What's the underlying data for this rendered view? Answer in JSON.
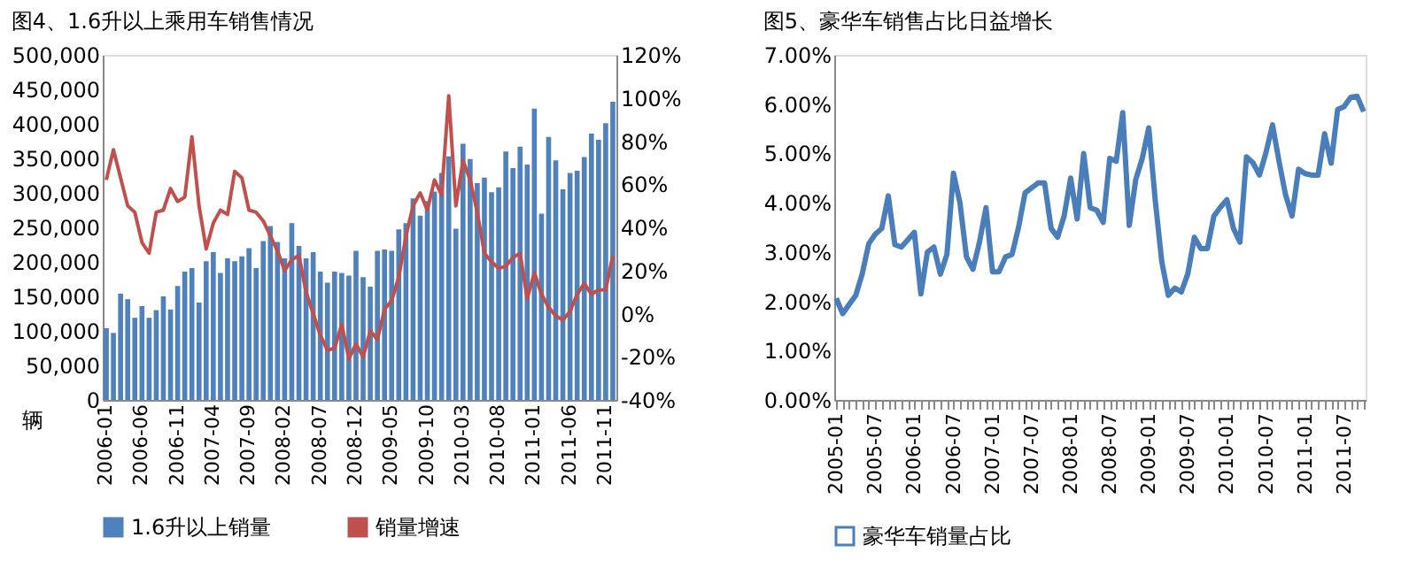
{
  "chart_data": [
    {
      "type": "bar",
      "title": "图4、1.6升以上乘用车销售情况",
      "ylabel": "辆",
      "categories": [
        "2006-01",
        null,
        null,
        null,
        null,
        "2006-06",
        null,
        null,
        null,
        null,
        "2006-11",
        null,
        null,
        null,
        null,
        "2007-04",
        null,
        null,
        null,
        null,
        "2007-09",
        null,
        null,
        null,
        null,
        "2008-02",
        null,
        null,
        null,
        null,
        "2008-07",
        null,
        null,
        null,
        null,
        "2008-12",
        null,
        null,
        null,
        null,
        "2009-05",
        null,
        null,
        null,
        null,
        "2009-10",
        null,
        null,
        null,
        null,
        "2010-03",
        null,
        null,
        null,
        null,
        "2010-08",
        null,
        null,
        null,
        null,
        "2011-01",
        null,
        null,
        null,
        null,
        "2011-06",
        null,
        null,
        null,
        null,
        "2011-11",
        null
      ],
      "series": [
        {
          "name": "1.6升以上销量",
          "type": "bar",
          "color": "#4f81bd",
          "values": [
            104000,
            97000,
            154000,
            146000,
            119000,
            136000,
            119000,
            130000,
            150000,
            131000,
            165000,
            186000,
            191000,
            141000,
            201000,
            214000,
            184000,
            205000,
            201000,
            208000,
            220000,
            191000,
            230000,
            252000,
            229000,
            205000,
            256000,
            223000,
            205000,
            214000,
            186000,
            170000,
            186000,
            184000,
            180000,
            216000,
            178000,
            164000,
            216000,
            218000,
            216000,
            247000,
            256000,
            292000,
            267000,
            288000,
            302000,
            329000,
            353000,
            248000,
            371000,
            349000,
            314000,
            322000,
            301000,
            308000,
            360000,
            336000,
            367000,
            341000,
            422000,
            270000,
            381000,
            347000,
            305000,
            329000,
            332000,
            352000,
            386000,
            377000,
            401000,
            432000
          ]
        },
        {
          "name": "销量增速",
          "type": "line",
          "axis": "y2",
          "color": "#c0504d",
          "values": [
            62,
            76,
            63,
            50,
            47,
            33,
            28,
            47,
            48,
            58,
            52,
            54,
            82,
            50,
            30,
            42,
            48,
            46,
            66,
            63,
            48,
            47,
            43,
            36,
            29,
            20,
            25,
            27,
            10,
            0,
            -10,
            -17,
            -16,
            -5,
            -21,
            -14,
            -20,
            -8,
            -12,
            2,
            6,
            17,
            36,
            50,
            56,
            48,
            62,
            55,
            101,
            50,
            71,
            62,
            47,
            28,
            24,
            21,
            22,
            26,
            28,
            7,
            19,
            9,
            3,
            -1,
            -3,
            1,
            9,
            14,
            9,
            11,
            11,
            27
          ]
        }
      ],
      "ylim": [
        0,
        500000
      ],
      "yticks": [
        {
          "value": 0,
          "label": "0"
        },
        {
          "value": 50000,
          "label": "50,000"
        },
        {
          "value": 100000,
          "label": "100,000"
        },
        {
          "value": 150000,
          "label": "150,000"
        },
        {
          "value": 200000,
          "label": "200,000"
        },
        {
          "value": 250000,
          "label": "250,000"
        },
        {
          "value": 300000,
          "label": "300,000"
        },
        {
          "value": 350000,
          "label": "350,000"
        },
        {
          "value": 400000,
          "label": "400,000"
        },
        {
          "value": 450000,
          "label": "450,000"
        },
        {
          "value": 500000,
          "label": "500,000"
        }
      ],
      "y2lim": [
        -40,
        120
      ],
      "y2ticks": [
        {
          "value": -40,
          "label": "-40%"
        },
        {
          "value": -20,
          "label": "-20%"
        },
        {
          "value": 0,
          "label": "0%"
        },
        {
          "value": 20,
          "label": "20%"
        },
        {
          "value": 40,
          "label": "40%"
        },
        {
          "value": 60,
          "label": "60%"
        },
        {
          "value": 80,
          "label": "80%"
        },
        {
          "value": 100,
          "label": "100%"
        },
        {
          "value": 120,
          "label": "120%"
        }
      ],
      "legend": "bottom"
    },
    {
      "type": "line",
      "title": "图5、豪华车销售占比日益增长",
      "categories": [
        "2005-01",
        null,
        null,
        null,
        null,
        null,
        "2005-07",
        null,
        null,
        null,
        null,
        null,
        "2006-01",
        null,
        null,
        null,
        null,
        null,
        "2006-07",
        null,
        null,
        null,
        null,
        null,
        "2007-01",
        null,
        null,
        null,
        null,
        null,
        "2007-07",
        null,
        null,
        null,
        null,
        null,
        "2008-01",
        null,
        null,
        null,
        null,
        null,
        "2008-07",
        null,
        null,
        null,
        null,
        null,
        "2009-01",
        null,
        null,
        null,
        null,
        null,
        "2009-07",
        null,
        null,
        null,
        null,
        null,
        "2010-01",
        null,
        null,
        null,
        null,
        null,
        "2010-07",
        null,
        null,
        null,
        null,
        null,
        "2011-01",
        null,
        null,
        null,
        null,
        null,
        "2011-07",
        null,
        null,
        null
      ],
      "series": [
        {
          "name": "豪华车销量占比",
          "color": "#4a7ebb",
          "values": [
            2.06,
            1.75,
            1.94,
            2.12,
            2.56,
            3.17,
            3.36,
            3.48,
            4.14,
            3.15,
            3.1,
            3.25,
            3.4,
            2.15,
            3.0,
            3.1,
            2.55,
            2.95,
            4.6,
            4.0,
            2.9,
            2.65,
            3.2,
            3.9,
            2.6,
            2.6,
            2.9,
            2.95,
            3.5,
            4.2,
            4.3,
            4.4,
            4.4,
            3.48,
            3.3,
            3.73,
            4.5,
            3.67,
            5.0,
            3.9,
            3.85,
            3.6,
            4.9,
            4.84,
            5.83,
            3.54,
            4.47,
            4.9,
            5.52,
            4.04,
            2.8,
            2.12,
            2.27,
            2.19,
            2.56,
            3.3,
            3.07,
            3.07,
            3.73,
            3.91,
            4.06,
            3.48,
            3.2,
            4.93,
            4.81,
            4.56,
            5.02,
            5.58,
            4.84,
            4.16,
            3.73,
            4.68,
            4.59,
            4.56,
            4.56,
            5.4,
            4.8,
            5.89,
            5.95,
            6.14,
            6.16,
            5.85
          ]
        }
      ],
      "ylim": [
        0,
        7
      ],
      "yticks": [
        {
          "value": 0,
          "label": "0.00%"
        },
        {
          "value": 1,
          "label": "1.00%"
        },
        {
          "value": 2,
          "label": "2.00%"
        },
        {
          "value": 3,
          "label": "3.00%"
        },
        {
          "value": 4,
          "label": "4.00%"
        },
        {
          "value": 5,
          "label": "5.00%"
        },
        {
          "value": 6,
          "label": "6.00%"
        },
        {
          "value": 7,
          "label": "7.00%"
        }
      ],
      "legend": "bottom"
    }
  ]
}
